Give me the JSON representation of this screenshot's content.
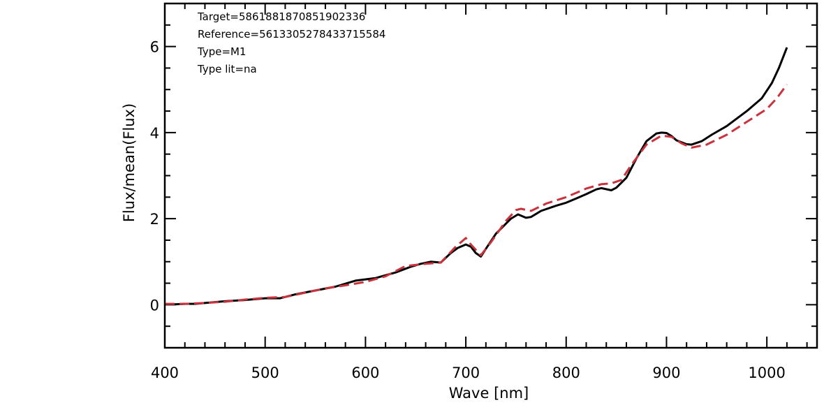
{
  "chart_data": {
    "type": "line",
    "xlabel": "Wave [nm]",
    "ylabel": "Flux/mean(Flux)",
    "xlim": [
      400,
      1050
    ],
    "ylim": [
      -1,
      7
    ],
    "x_ticks": [
      400,
      500,
      600,
      700,
      800,
      900,
      1000
    ],
    "y_ticks": [
      0,
      2,
      4,
      6
    ],
    "x_minor_step": 20,
    "y_minor_step": 0.5,
    "grid": false,
    "annotations": [
      "Target=5861881870851902336",
      "Reference=5613305278433715584",
      "Type=M1",
      "Type lit=na"
    ],
    "series": [
      {
        "color": "#000000",
        "dash": "solid",
        "x": [
          400,
          410,
          420,
          430,
          440,
          460,
          480,
          500,
          515,
          530,
          550,
          570,
          590,
          610,
          630,
          645,
          655,
          665,
          675,
          685,
          692,
          700,
          705,
          710,
          715,
          720,
          730,
          745,
          752,
          760,
          765,
          775,
          790,
          800,
          810,
          820,
          830,
          835,
          845,
          850,
          860,
          870,
          880,
          890,
          895,
          900,
          905,
          910,
          920,
          925,
          935,
          945,
          960,
          980,
          995,
          1005,
          1012,
          1020
        ],
        "values": [
          0.01,
          0.01,
          0.02,
          0.02,
          0.04,
          0.08,
          0.11,
          0.15,
          0.15,
          0.24,
          0.33,
          0.42,
          0.56,
          0.62,
          0.75,
          0.88,
          0.95,
          1.0,
          0.98,
          1.2,
          1.32,
          1.4,
          1.35,
          1.2,
          1.12,
          1.3,
          1.65,
          2.0,
          2.1,
          2.02,
          2.04,
          2.18,
          2.3,
          2.37,
          2.47,
          2.57,
          2.68,
          2.71,
          2.66,
          2.72,
          2.95,
          3.4,
          3.8,
          3.98,
          4.0,
          3.99,
          3.92,
          3.82,
          3.73,
          3.72,
          3.8,
          3.95,
          4.15,
          4.5,
          4.8,
          5.15,
          5.5,
          5.98
        ]
      },
      {
        "color": "#c8333d",
        "dash": "dashed",
        "x": [
          400,
          420,
          440,
          460,
          480,
          500,
          520,
          540,
          560,
          580,
          600,
          620,
          640,
          660,
          675,
          690,
          700,
          705,
          715,
          725,
          740,
          750,
          755,
          765,
          780,
          800,
          820,
          835,
          845,
          855,
          865,
          880,
          895,
          905,
          915,
          925,
          940,
          960,
          980,
          1000,
          1010,
          1020
        ],
        "values": [
          0.02,
          0.02,
          0.04,
          0.07,
          0.12,
          0.16,
          0.18,
          0.28,
          0.38,
          0.45,
          0.53,
          0.66,
          0.9,
          0.95,
          0.98,
          1.35,
          1.55,
          1.4,
          1.15,
          1.45,
          1.95,
          2.2,
          2.23,
          2.18,
          2.35,
          2.5,
          2.7,
          2.8,
          2.82,
          2.9,
          3.25,
          3.72,
          3.93,
          3.9,
          3.75,
          3.65,
          3.72,
          3.95,
          4.25,
          4.55,
          4.8,
          5.12
        ]
      }
    ]
  }
}
